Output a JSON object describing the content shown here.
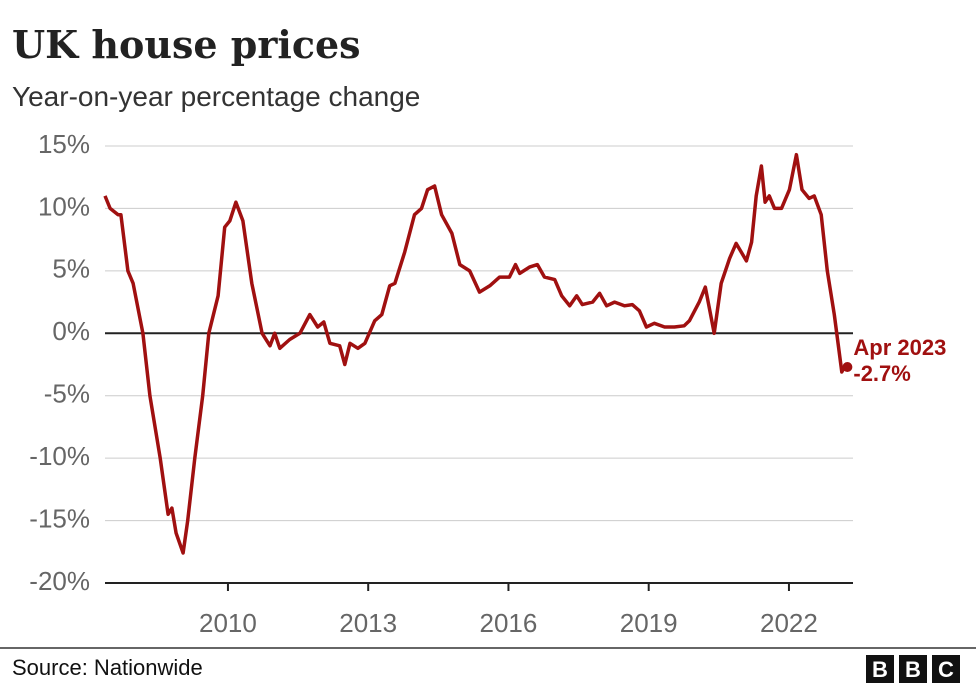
{
  "chart_data": {
    "type": "line",
    "title": "UK house prices",
    "subtitle": "Year-on-year percentage change",
    "source": "Source: Nationwide",
    "logo": [
      "B",
      "B",
      "C"
    ],
    "end_label": {
      "date": "Apr 2023",
      "value_label": "-2.7%"
    },
    "x": [
      2007.37,
      2007.48,
      2007.65,
      2007.71,
      2007.86,
      2007.97,
      2008.18,
      2008.33,
      2008.55,
      2008.72,
      2008.8,
      2008.89,
      2009.04,
      2009.14,
      2009.29,
      2009.46,
      2009.59,
      2009.79,
      2009.93,
      2010.04,
      2010.17,
      2010.32,
      2010.51,
      2010.73,
      2010.9,
      2011.0,
      2011.11,
      2011.32,
      2011.54,
      2011.75,
      2011.92,
      2012.05,
      2012.18,
      2012.39,
      2012.5,
      2012.61,
      2012.78,
      2012.93,
      2013.14,
      2013.29,
      2013.46,
      2013.57,
      2013.78,
      2013.99,
      2014.14,
      2014.27,
      2014.42,
      2014.57,
      2014.79,
      2014.96,
      2015.17,
      2015.38,
      2015.6,
      2015.81,
      2016.02,
      2016.15,
      2016.24,
      2016.45,
      2016.62,
      2016.77,
      2016.99,
      2017.14,
      2017.31,
      2017.46,
      2017.58,
      2017.8,
      2017.95,
      2018.1,
      2018.27,
      2018.48,
      2018.65,
      2018.8,
      2018.95,
      2019.12,
      2019.34,
      2019.55,
      2019.76,
      2019.87,
      2020.08,
      2020.21,
      2020.4,
      2020.55,
      2020.73,
      2020.87,
      2020.98,
      2021.09,
      2021.2,
      2021.3,
      2021.41,
      2021.49,
      2021.58,
      2021.69,
      2021.84,
      2022.01,
      2022.16,
      2022.28,
      2022.43,
      2022.54,
      2022.69,
      2022.82,
      2022.97,
      2023.13,
      2023.2,
      2023.25
    ],
    "series": [
      {
        "name": "UK house prices",
        "color": "#a01010",
        "values": [
          11,
          10,
          9.5,
          9.5,
          5,
          4,
          0,
          -5,
          -10,
          -14.5,
          -14,
          -16,
          -17.6,
          -15,
          -10,
          -5,
          0,
          3,
          8.5,
          9,
          10.5,
          9,
          4,
          0,
          -1,
          0,
          -1.2,
          -0.5,
          0,
          1.5,
          0.5,
          0.9,
          -0.8,
          -1,
          -2.5,
          -0.8,
          -1.2,
          -0.8,
          1,
          1.5,
          3.8,
          4,
          6.5,
          9.5,
          10,
          11.5,
          11.8,
          9.5,
          8,
          5.5,
          5,
          3.3,
          3.8,
          4.5,
          4.5,
          5.5,
          4.8,
          5.3,
          5.5,
          4.5,
          4.3,
          3,
          2.2,
          3,
          2.3,
          2.5,
          3.2,
          2.2,
          2.5,
          2.2,
          2.3,
          1.8,
          0.5,
          0.8,
          0.5,
          0.5,
          0.6,
          1,
          2.5,
          3.7,
          0,
          4,
          6,
          7.2,
          6.5,
          5.8,
          7.3,
          11,
          13.4,
          10.5,
          11,
          10,
          10,
          11.5,
          14.3,
          11.5,
          10.8,
          11,
          9.5,
          5,
          1.5,
          -3.1,
          -2.6,
          -2.7
        ]
      }
    ],
    "xlim": [
      2007.37,
      2023.37
    ],
    "xticks": [
      2010,
      2013,
      2016,
      2019,
      2022
    ],
    "ylim": [
      -20,
      15
    ],
    "yticks": [
      {
        "value": -20,
        "label": "-20%"
      },
      {
        "value": -15,
        "label": "-15%"
      },
      {
        "value": -10,
        "label": "-10%"
      },
      {
        "value": -5,
        "label": "-5%"
      },
      {
        "value": 0,
        "label": "0%"
      },
      {
        "value": 5,
        "label": "5%"
      },
      {
        "value": 10,
        "label": "10%"
      },
      {
        "value": 15,
        "label": "15%"
      }
    ],
    "grid": true
  }
}
